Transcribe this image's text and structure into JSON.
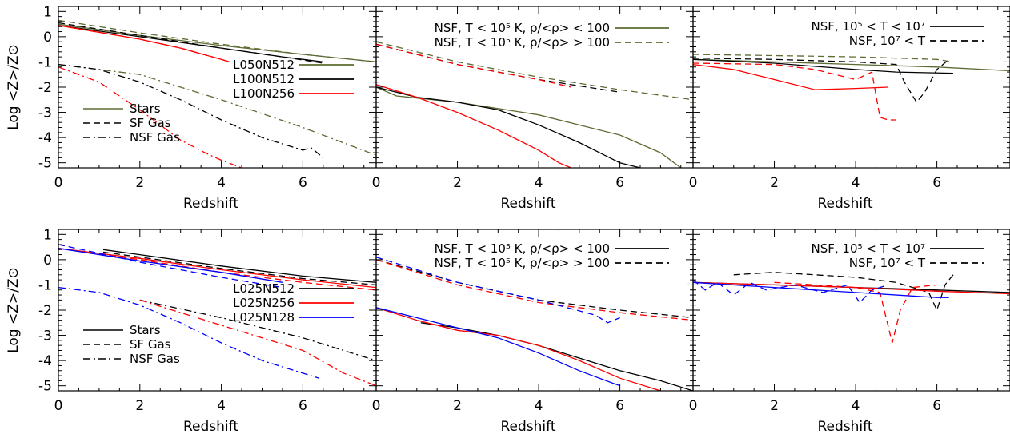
{
  "colors": {
    "olive": "#5b6b32",
    "black": "#000000",
    "red": "#ff0000",
    "blue": "#0000ff"
  },
  "chart_data": [
    {
      "panel": "top-left",
      "type": "line",
      "xlabel": "Redshift",
      "ylabel": "Log <Z>/Z⊙",
      "xlim": [
        0,
        7.8
      ],
      "ylim": [
        -5.2,
        1.2
      ],
      "xticks": [
        "0",
        "2",
        "4",
        "6"
      ],
      "yticks": [
        "1",
        "0",
        "-1",
        "-2",
        "-3",
        "-4",
        "-5"
      ],
      "legend": [
        {
          "label": "L050N512",
          "color": "olive",
          "dash": "solid"
        },
        {
          "label": "L100N512",
          "color": "black",
          "dash": "solid"
        },
        {
          "label": "L100N256",
          "color": "red",
          "dash": "solid"
        },
        {
          "label": "Stars",
          "color": "olive",
          "dash": "solid"
        },
        {
          "label": "SF Gas",
          "color": "black",
          "dash": "dashed"
        },
        {
          "label": "NSF Gas",
          "color": "black",
          "dash": "dashdot"
        }
      ],
      "series": [
        {
          "color": "olive",
          "dash": "solid",
          "x": [
            0,
            2,
            4,
            6,
            7.8
          ],
          "y": [
            0.5,
            0.05,
            -0.35,
            -0.7,
            -1.0
          ]
        },
        {
          "color": "olive",
          "dash": "dashed",
          "x": [
            0,
            2,
            4,
            6,
            7.8
          ],
          "y": [
            0.65,
            0.15,
            -0.3,
            -0.7,
            -1.0
          ]
        },
        {
          "color": "olive",
          "dash": "dashdot",
          "x": [
            0,
            2,
            4,
            6,
            7.8
          ],
          "y": [
            -1.1,
            -1.5,
            -2.5,
            -3.6,
            -4.7
          ]
        },
        {
          "color": "black",
          "dash": "solid",
          "x": [
            0,
            2,
            4,
            5.5,
            6.5
          ],
          "y": [
            0.45,
            0.0,
            -0.45,
            -0.8,
            -1.0
          ]
        },
        {
          "color": "black",
          "dash": "dashed",
          "x": [
            0,
            2,
            4,
            5.5,
            6.5
          ],
          "y": [
            0.55,
            0.05,
            -0.45,
            -0.8,
            -1.05
          ]
        },
        {
          "color": "black",
          "dash": "dashdot",
          "x": [
            0,
            1,
            2,
            3,
            4,
            5,
            6.0,
            6.2,
            6.5
          ],
          "y": [
            -1.1,
            -1.3,
            -1.8,
            -2.5,
            -3.3,
            -4.0,
            -4.5,
            -4.4,
            -4.8
          ]
        },
        {
          "color": "red",
          "dash": "solid",
          "x": [
            0,
            2,
            3,
            4,
            4.2
          ],
          "y": [
            0.45,
            -0.1,
            -0.45,
            -0.9,
            -1.0
          ]
        },
        {
          "color": "red",
          "dash": "dashed",
          "x": [
            0,
            2,
            3,
            4,
            4.2
          ],
          "y": [
            0.45,
            -0.1,
            -0.45,
            -0.9,
            -1.0
          ]
        },
        {
          "color": "red",
          "dash": "dashdot",
          "x": [
            0,
            1,
            2,
            3,
            3.6,
            4.0,
            4.5
          ],
          "y": [
            -1.2,
            -1.8,
            -2.9,
            -4.1,
            -4.6,
            -4.9,
            -5.2
          ]
        }
      ]
    },
    {
      "panel": "top-middle",
      "type": "line",
      "xlabel": "Redshift",
      "xlim": [
        0,
        7.8
      ],
      "ylim": [
        -5.2,
        1.2
      ],
      "xticks": [
        "0",
        "2",
        "4",
        "6"
      ],
      "legend": [
        {
          "label": "NSF, T < 10⁵ K, ρ/<ρ> < 100",
          "color": "olive",
          "dash": "solid"
        },
        {
          "label": "NSF, T < 10⁵ K, ρ/<ρ> > 100",
          "color": "olive",
          "dash": "dashed"
        }
      ],
      "series": [
        {
          "color": "olive",
          "dash": "dashed",
          "x": [
            0,
            2,
            4,
            6,
            7.8
          ],
          "y": [
            -0.2,
            -1.0,
            -1.6,
            -2.1,
            -2.5
          ]
        },
        {
          "color": "black",
          "dash": "dashed",
          "x": [
            0,
            2,
            4,
            6
          ],
          "y": [
            -0.3,
            -1.1,
            -1.7,
            -2.2
          ]
        },
        {
          "color": "red",
          "dash": "dashed",
          "x": [
            0,
            2,
            4,
            4.8
          ],
          "y": [
            -0.3,
            -1.1,
            -1.7,
            -2.0
          ]
        },
        {
          "color": "olive",
          "dash": "solid",
          "x": [
            0,
            0.5,
            2,
            4,
            6,
            7.0,
            7.5
          ],
          "y": [
            -2.0,
            -2.35,
            -2.6,
            -3.1,
            -3.9,
            -4.6,
            -5.2
          ]
        },
        {
          "color": "black",
          "dash": "solid",
          "x": [
            0,
            1,
            2,
            3,
            4,
            5,
            6,
            6.5
          ],
          "y": [
            -2.0,
            -2.4,
            -2.6,
            -2.9,
            -3.5,
            -4.2,
            -5.0,
            -5.2
          ]
        },
        {
          "color": "red",
          "dash": "solid",
          "x": [
            0,
            1,
            2,
            3,
            4,
            4.5,
            4.8
          ],
          "y": [
            -1.9,
            -2.4,
            -3.0,
            -3.7,
            -4.5,
            -5.0,
            -5.2
          ]
        }
      ]
    },
    {
      "panel": "top-right",
      "type": "line",
      "xlabel": "Redshift",
      "xlim": [
        0,
        7.8
      ],
      "ylim": [
        -5.2,
        1.2
      ],
      "xticks": [
        "0",
        "2",
        "4",
        "6"
      ],
      "legend": [
        {
          "label": "NSF, 10⁵ < T < 10⁷",
          "color": "black",
          "dash": "solid"
        },
        {
          "label": "NSF, 10⁷ < T",
          "color": "black",
          "dash": "dashed"
        }
      ],
      "series": [
        {
          "color": "olive",
          "dash": "solid",
          "x": [
            0,
            2,
            4,
            6,
            7.8
          ],
          "y": [
            -0.9,
            -1.0,
            -1.1,
            -1.2,
            -1.35
          ]
        },
        {
          "color": "olive",
          "dash": "dashed",
          "x": [
            0,
            2,
            4,
            6,
            6.4
          ],
          "y": [
            -0.7,
            -0.75,
            -0.8,
            -0.9,
            -1.0
          ]
        },
        {
          "color": "black",
          "dash": "solid",
          "x": [
            0,
            2,
            4,
            5,
            6.4
          ],
          "y": [
            -0.9,
            -1.05,
            -1.3,
            -1.4,
            -1.45
          ]
        },
        {
          "color": "black",
          "dash": "dashed",
          "x": [
            0,
            2,
            4,
            5,
            5.2,
            5.5,
            5.7,
            6,
            6.3
          ],
          "y": [
            -0.85,
            -0.9,
            -1.0,
            -1.1,
            -1.8,
            -2.6,
            -2.2,
            -1.3,
            -0.9
          ]
        },
        {
          "color": "red",
          "dash": "solid",
          "x": [
            0,
            1,
            2,
            3,
            4,
            4.8
          ],
          "y": [
            -1.1,
            -1.3,
            -1.7,
            -2.1,
            -2.05,
            -2.0
          ]
        },
        {
          "color": "red",
          "dash": "dashed",
          "x": [
            0,
            2,
            3,
            4,
            4.4,
            4.6,
            4.8,
            5.0
          ],
          "y": [
            -1.05,
            -1.1,
            -1.3,
            -1.7,
            -1.4,
            -3.2,
            -3.3,
            -3.3
          ]
        }
      ]
    },
    {
      "panel": "bottom-left",
      "type": "line",
      "xlabel": "Redshift",
      "ylabel": "Log <Z>/Z⊙",
      "xlim": [
        0,
        7.8
      ],
      "ylim": [
        -5.2,
        1.2
      ],
      "xticks": [
        "0",
        "2",
        "4",
        "6"
      ],
      "yticks": [
        "1",
        "0",
        "-1",
        "-2",
        "-3",
        "-4",
        "-5"
      ],
      "legend": [
        {
          "label": "L025N512",
          "color": "black",
          "dash": "solid"
        },
        {
          "label": "L025N256",
          "color": "red",
          "dash": "solid"
        },
        {
          "label": "L025N128",
          "color": "blue",
          "dash": "solid"
        },
        {
          "label": "Stars",
          "color": "black",
          "dash": "solid"
        },
        {
          "label": "SF Gas",
          "color": "black",
          "dash": "dashed"
        },
        {
          "label": "NSF Gas",
          "color": "black",
          "dash": "dashdot"
        }
      ],
      "series": [
        {
          "color": "black",
          "dash": "solid",
          "x": [
            1.1,
            2,
            4,
            6,
            7.8
          ],
          "y": [
            0.4,
            0.2,
            -0.25,
            -0.65,
            -0.9
          ]
        },
        {
          "color": "black",
          "dash": "dashed",
          "x": [
            1.1,
            2,
            4,
            6,
            7.8
          ],
          "y": [
            0.3,
            0.1,
            -0.35,
            -0.75,
            -1.0
          ]
        },
        {
          "color": "black",
          "dash": "dashdot",
          "x": [
            2,
            4,
            6,
            7.8
          ],
          "y": [
            -1.6,
            -2.3,
            -3.1,
            -4.0
          ]
        },
        {
          "color": "red",
          "dash": "solid",
          "x": [
            0,
            2,
            4,
            6,
            7.8
          ],
          "y": [
            0.45,
            0.05,
            -0.4,
            -0.8,
            -1.1
          ]
        },
        {
          "color": "red",
          "dash": "dashed",
          "x": [
            0,
            2,
            4,
            6,
            7.8
          ],
          "y": [
            0.45,
            0.0,
            -0.5,
            -0.9,
            -1.2
          ]
        },
        {
          "color": "red",
          "dash": "dashdot",
          "x": [
            2,
            4,
            6,
            7.0,
            7.8
          ],
          "y": [
            -1.6,
            -2.6,
            -3.6,
            -4.5,
            -5.0
          ]
        },
        {
          "color": "blue",
          "dash": "solid",
          "x": [
            0,
            2,
            4,
            5.5
          ],
          "y": [
            0.45,
            -0.05,
            -0.5,
            -0.9
          ]
        },
        {
          "color": "blue",
          "dash": "dashed",
          "x": [
            0,
            2,
            4,
            5.5
          ],
          "y": [
            0.6,
            -0.1,
            -0.7,
            -1.1
          ]
        },
        {
          "color": "blue",
          "dash": "dashdot",
          "x": [
            0,
            1,
            2,
            3,
            4,
            5,
            6,
            6.4
          ],
          "y": [
            -1.1,
            -1.3,
            -1.8,
            -2.5,
            -3.3,
            -4.0,
            -4.5,
            -4.7
          ]
        }
      ]
    },
    {
      "panel": "bottom-middle",
      "type": "line",
      "xlabel": "Redshift",
      "xlim": [
        0,
        7.8
      ],
      "ylim": [
        -5.2,
        1.2
      ],
      "xticks": [
        "0",
        "2",
        "4",
        "6"
      ],
      "legend": [
        {
          "label": "NSF, T < 10⁵ K, ρ/<ρ> < 100",
          "color": "black",
          "dash": "solid"
        },
        {
          "label": "NSF, T < 10⁵ K, ρ/<ρ> > 100",
          "color": "black",
          "dash": "dashed"
        }
      ],
      "series": [
        {
          "color": "black",
          "dash": "dashed",
          "x": [
            0,
            2,
            4,
            6,
            7.8
          ],
          "y": [
            0.0,
            -0.9,
            -1.6,
            -2.0,
            -2.3
          ]
        },
        {
          "color": "red",
          "dash": "dashed",
          "x": [
            0,
            2,
            4,
            6,
            7.8
          ],
          "y": [
            0.0,
            -1.0,
            -1.7,
            -2.1,
            -2.4
          ]
        },
        {
          "color": "blue",
          "dash": "dashed",
          "x": [
            0,
            2,
            4,
            5.4,
            5.7,
            6
          ],
          "y": [
            0.1,
            -0.9,
            -1.6,
            -2.2,
            -2.5,
            -2.3
          ]
        },
        {
          "color": "black",
          "dash": "solid",
          "x": [
            1.1,
            2,
            3,
            4,
            5,
            6,
            7,
            7.8
          ],
          "y": [
            -2.5,
            -2.7,
            -3.0,
            -3.4,
            -3.9,
            -4.4,
            -4.8,
            -5.2
          ]
        },
        {
          "color": "red",
          "dash": "solid",
          "x": [
            0,
            1,
            2,
            3,
            4,
            5,
            6,
            7
          ],
          "y": [
            -1.9,
            -2.4,
            -2.8,
            -3.0,
            -3.4,
            -4.0,
            -4.7,
            -5.2
          ]
        },
        {
          "color": "blue",
          "dash": "solid",
          "x": [
            0,
            1,
            2,
            3,
            4,
            5,
            6
          ],
          "y": [
            -1.9,
            -2.3,
            -2.7,
            -3.1,
            -3.7,
            -4.4,
            -5.0
          ]
        }
      ]
    },
    {
      "panel": "bottom-right",
      "type": "line",
      "xlabel": "Redshift",
      "xlim": [
        0,
        7.8
      ],
      "ylim": [
        -5.2,
        1.2
      ],
      "xticks": [
        "0",
        "2",
        "4",
        "6"
      ],
      "legend": [
        {
          "label": "NSF, 10⁵ < T < 10⁷",
          "color": "black",
          "dash": "solid"
        },
        {
          "label": "NSF, 10⁷ < T",
          "color": "black",
          "dash": "dashed"
        }
      ],
      "series": [
        {
          "color": "black",
          "dash": "solid",
          "x": [
            0,
            2,
            4,
            6,
            7.8
          ],
          "y": [
            -0.9,
            -1.0,
            -1.1,
            -1.2,
            -1.3
          ]
        },
        {
          "color": "black",
          "dash": "dashed",
          "x": [
            1,
            2,
            3,
            4,
            5,
            5.8,
            6,
            6.2,
            6.4
          ],
          "y": [
            -0.6,
            -0.5,
            -0.6,
            -0.7,
            -0.9,
            -1.3,
            -2.0,
            -1.0,
            -0.6
          ]
        },
        {
          "color": "red",
          "dash": "solid",
          "x": [
            0,
            2,
            4,
            6,
            7.8
          ],
          "y": [
            -0.9,
            -1.0,
            -1.1,
            -1.25,
            -1.35
          ]
        },
        {
          "color": "red",
          "dash": "dashed",
          "x": [
            2,
            3,
            4,
            4.6,
            4.9,
            5.1,
            5.4,
            6
          ],
          "y": [
            -0.9,
            -1.0,
            -1.1,
            -1.3,
            -3.3,
            -2.0,
            -1.1,
            -1.0
          ]
        },
        {
          "color": "blue",
          "dash": "solid",
          "x": [
            0,
            2,
            4,
            6,
            6.3
          ],
          "y": [
            -0.9,
            -1.1,
            -1.3,
            -1.5,
            -1.5
          ]
        },
        {
          "color": "blue",
          "dash": "dashed",
          "x": [
            0,
            0.3,
            0.6,
            1.0,
            1.4,
            1.8,
            2.5,
            3.2,
            3.8,
            4.1,
            4.4,
            4.8
          ],
          "y": [
            -0.8,
            -1.2,
            -0.9,
            -1.4,
            -0.9,
            -1.2,
            -1.0,
            -1.3,
            -1.0,
            -1.7,
            -1.2,
            -1.0
          ]
        }
      ]
    }
  ]
}
